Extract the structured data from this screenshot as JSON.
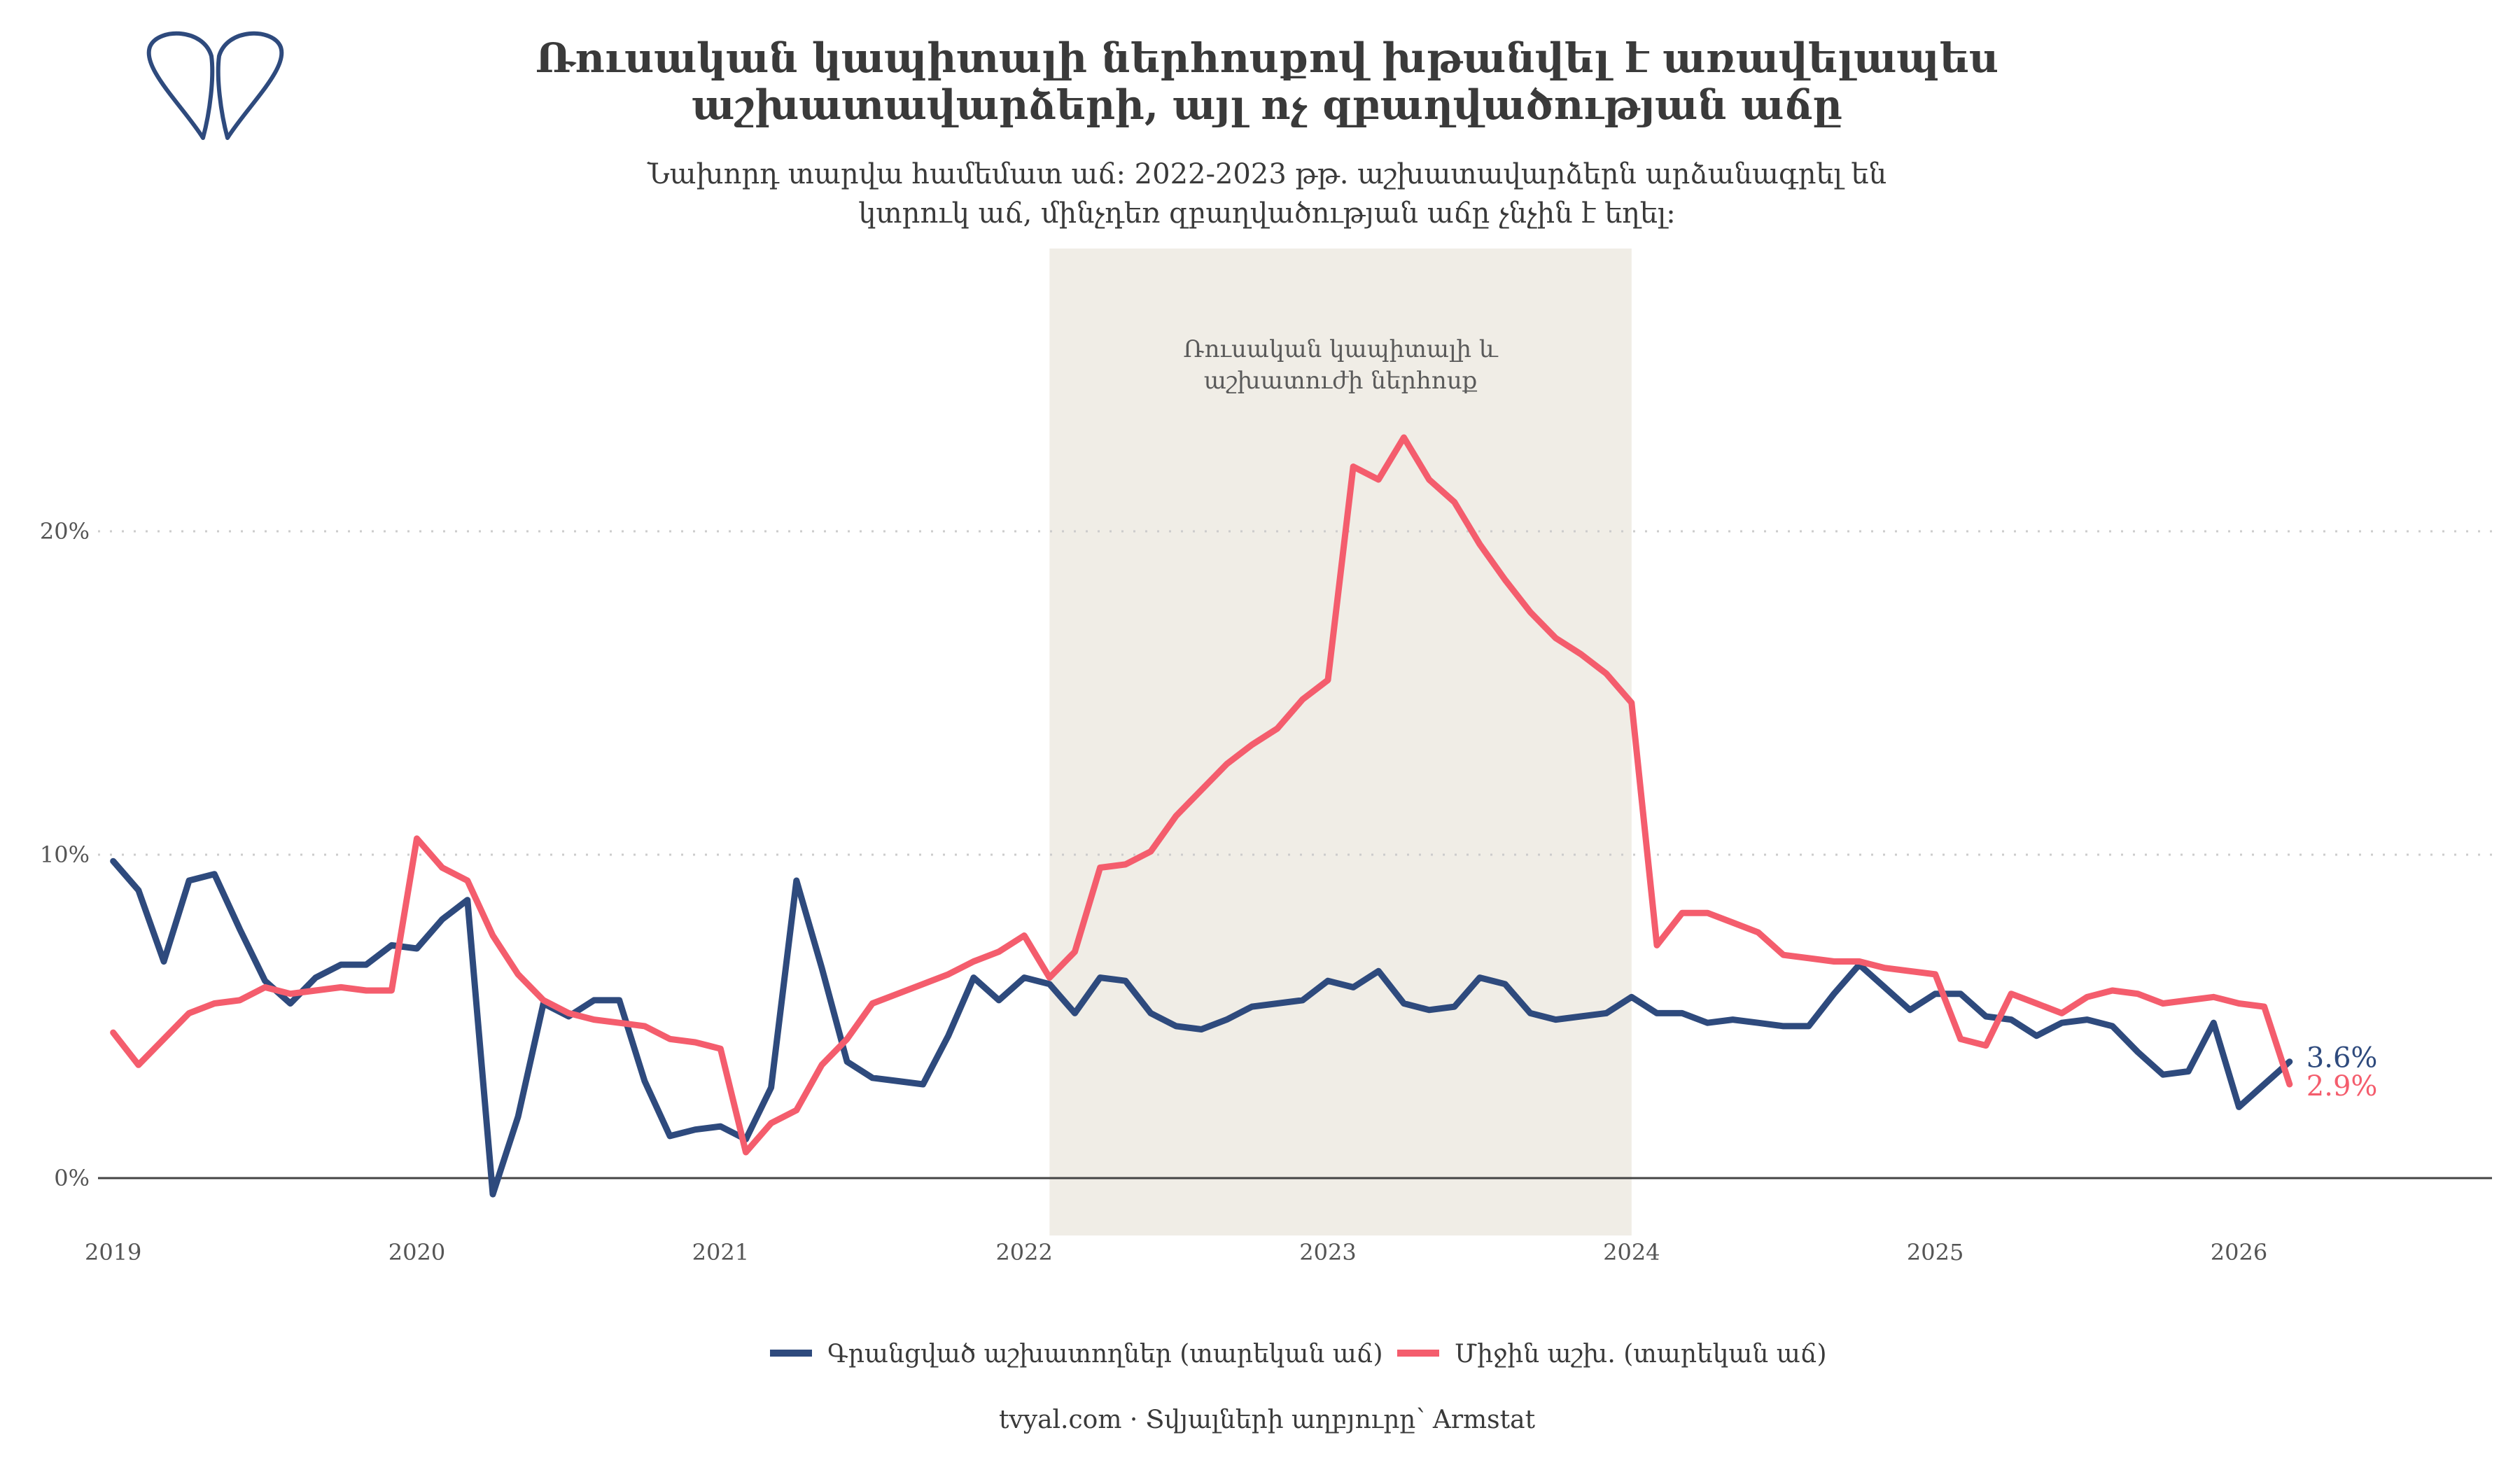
{
  "title": [
    "Ռուսական կապիտալի ներհոսքով խթանվել է առավելապես",
    "աշխատավարձերի, այլ ոչ զբաղվածության աճը"
  ],
  "subtitle": [
    "Նախորդ տարվա համեմատ աճ: 2022-2023 թթ. աշխատավարձերն արձանագրել են",
    "կտրուկ աճ, մինչդեռ զբաղվածության աճը չնչին է եղել:"
  ],
  "caption": "tvyal.com  ·  Տվյալների աղբյուրը՝ Armstat",
  "logo_icon": "tvyal-logo-icon",
  "colors": {
    "employees": "#2e4a7d",
    "wage": "#f45d6d",
    "shade": "#f0ede6",
    "grid": "#cccccc",
    "zero_line": "#444444"
  },
  "chart_data": {
    "type": "line",
    "ylim": [
      -0.02,
      0.28
    ],
    "xlim": [
      "2019-01",
      "2026-11"
    ],
    "grid": "horizontal dotted",
    "legend_position": "bottom",
    "y_ticks": [
      {
        "value": 0.0,
        "label": "0%"
      },
      {
        "value": 0.1,
        "label": "10%"
      },
      {
        "value": 0.2,
        "label": "20%"
      }
    ],
    "x_ticks": [
      {
        "value": 2019,
        "label": "2019"
      },
      {
        "value": 2020,
        "label": "2020"
      },
      {
        "value": 2021,
        "label": "2021"
      },
      {
        "value": 2022,
        "label": "2022"
      },
      {
        "value": 2023,
        "label": "2023"
      },
      {
        "value": 2024,
        "label": "2024"
      },
      {
        "value": 2025,
        "label": "2025"
      },
      {
        "value": 2026,
        "label": "2026"
      }
    ],
    "shaded_period": {
      "start": "2022-02",
      "end": "2024-01",
      "label": [
        "Ռուսական կապիտալի և",
        "աշխատուժի ներհոսք"
      ]
    },
    "series": [
      {
        "name": "Գրանցված աշխատողներ (տարեկան աճ)",
        "color": "#2e4a7d",
        "end_label": "3.6%",
        "points": [
          [
            "2019-01",
            0.098
          ],
          [
            "2019-02",
            0.089
          ],
          [
            "2019-03",
            0.067
          ],
          [
            "2019-04",
            0.092
          ],
          [
            "2019-05",
            0.094
          ],
          [
            "2019-06",
            0.077
          ],
          [
            "2019-07",
            0.061
          ],
          [
            "2019-08",
            0.054
          ],
          [
            "2019-09",
            0.062
          ],
          [
            "2019-10",
            0.066
          ],
          [
            "2019-11",
            0.066
          ],
          [
            "2019-12",
            0.072
          ],
          [
            "2020-01",
            0.071
          ],
          [
            "2020-02",
            0.08
          ],
          [
            "2020-03",
            0.086
          ],
          [
            "2020-04",
            -0.005
          ],
          [
            "2020-05",
            0.019
          ],
          [
            "2020-06",
            0.054
          ],
          [
            "2020-07",
            0.05
          ],
          [
            "2020-08",
            0.055
          ],
          [
            "2020-09",
            0.055
          ],
          [
            "2020-10",
            0.03
          ],
          [
            "2020-11",
            0.013
          ],
          [
            "2020-12",
            0.015
          ],
          [
            "2021-01",
            0.016
          ],
          [
            "2021-02",
            0.012
          ],
          [
            "2021-03",
            0.028
          ],
          [
            "2021-04",
            0.092
          ],
          [
            "2021-05",
            0.065
          ],
          [
            "2021-06",
            0.036
          ],
          [
            "2021-07",
            0.031
          ],
          [
            "2021-08",
            0.03
          ],
          [
            "2021-09",
            0.029
          ],
          [
            "2021-10",
            0.044
          ],
          [
            "2021-11",
            0.062
          ],
          [
            "2021-12",
            0.055
          ],
          [
            "2022-01",
            0.062
          ],
          [
            "2022-02",
            0.06
          ],
          [
            "2022-03",
            0.051
          ],
          [
            "2022-04",
            0.062
          ],
          [
            "2022-05",
            0.061
          ],
          [
            "2022-06",
            0.051
          ],
          [
            "2022-07",
            0.047
          ],
          [
            "2022-08",
            0.046
          ],
          [
            "2022-09",
            0.049
          ],
          [
            "2022-10",
            0.053
          ],
          [
            "2022-11",
            0.054
          ],
          [
            "2022-12",
            0.055
          ],
          [
            "2023-01",
            0.061
          ],
          [
            "2023-02",
            0.059
          ],
          [
            "2023-03",
            0.064
          ],
          [
            "2023-04",
            0.054
          ],
          [
            "2023-05",
            0.052
          ],
          [
            "2023-06",
            0.053
          ],
          [
            "2023-07",
            0.062
          ],
          [
            "2023-08",
            0.06
          ],
          [
            "2023-09",
            0.051
          ],
          [
            "2023-10",
            0.049
          ],
          [
            "2023-11",
            0.05
          ],
          [
            "2023-12",
            0.051
          ],
          [
            "2024-01",
            0.056
          ],
          [
            "2024-02",
            0.051
          ],
          [
            "2024-03",
            0.051
          ],
          [
            "2024-04",
            0.048
          ],
          [
            "2024-05",
            0.049
          ],
          [
            "2024-06",
            0.048
          ],
          [
            "2024-07",
            0.047
          ],
          [
            "2024-08",
            0.047
          ],
          [
            "2024-09",
            0.057
          ],
          [
            "2024-10",
            0.066
          ],
          [
            "2024-11",
            0.059
          ],
          [
            "2024-12",
            0.052
          ],
          [
            "2025-01",
            0.057
          ],
          [
            "2025-02",
            0.057
          ],
          [
            "2025-03",
            0.05
          ],
          [
            "2025-04",
            0.049
          ],
          [
            "2025-05",
            0.044
          ],
          [
            "2025-06",
            0.048
          ],
          [
            "2025-07",
            0.049
          ],
          [
            "2025-08",
            0.047
          ],
          [
            "2025-09",
            0.039
          ],
          [
            "2025-10",
            0.032
          ],
          [
            "2025-11",
            0.033
          ],
          [
            "2025-12",
            0.048
          ],
          [
            "2026-01",
            0.022
          ],
          [
            "2026-02",
            0.029
          ],
          [
            "2026-03",
            0.036
          ]
        ]
      },
      {
        "name": "Միջին աշխ. (տարեկան աճ)",
        "color": "#f45d6d",
        "end_label": "2.9%",
        "points": [
          [
            "2019-01",
            0.045
          ],
          [
            "2019-02",
            0.035
          ],
          [
            "2019-03",
            0.043
          ],
          [
            "2019-04",
            0.051
          ],
          [
            "2019-05",
            0.054
          ],
          [
            "2019-06",
            0.055
          ],
          [
            "2019-07",
            0.059
          ],
          [
            "2019-08",
            0.057
          ],
          [
            "2019-09",
            0.058
          ],
          [
            "2019-10",
            0.059
          ],
          [
            "2019-11",
            0.058
          ],
          [
            "2019-12",
            0.058
          ],
          [
            "2020-01",
            0.105
          ],
          [
            "2020-02",
            0.096
          ],
          [
            "2020-03",
            0.092
          ],
          [
            "2020-04",
            0.075
          ],
          [
            "2020-05",
            0.063
          ],
          [
            "2020-06",
            0.055
          ],
          [
            "2020-07",
            0.051
          ],
          [
            "2020-08",
            0.049
          ],
          [
            "2020-09",
            0.048
          ],
          [
            "2020-10",
            0.047
          ],
          [
            "2020-11",
            0.043
          ],
          [
            "2020-12",
            0.042
          ],
          [
            "2021-01",
            0.04
          ],
          [
            "2021-02",
            0.008
          ],
          [
            "2021-03",
            0.017
          ],
          [
            "2021-04",
            0.021
          ],
          [
            "2021-05",
            0.035
          ],
          [
            "2021-06",
            0.043
          ],
          [
            "2021-07",
            0.054
          ],
          [
            "2021-08",
            0.057
          ],
          [
            "2021-09",
            0.06
          ],
          [
            "2021-10",
            0.063
          ],
          [
            "2021-11",
            0.067
          ],
          [
            "2021-12",
            0.07
          ],
          [
            "2022-01",
            0.075
          ],
          [
            "2022-02",
            0.062
          ],
          [
            "2022-03",
            0.07
          ],
          [
            "2022-04",
            0.096
          ],
          [
            "2022-05",
            0.097
          ],
          [
            "2022-06",
            0.101
          ],
          [
            "2022-07",
            0.112
          ],
          [
            "2022-08",
            0.12
          ],
          [
            "2022-09",
            0.128
          ],
          [
            "2022-10",
            0.134
          ],
          [
            "2022-11",
            0.139
          ],
          [
            "2022-12",
            0.148
          ],
          [
            "2023-01",
            0.154
          ],
          [
            "2023-02",
            0.22
          ],
          [
            "2023-03",
            0.216
          ],
          [
            "2023-04",
            0.229
          ],
          [
            "2023-05",
            0.216
          ],
          [
            "2023-06",
            0.209
          ],
          [
            "2023-07",
            0.196
          ],
          [
            "2023-08",
            0.185
          ],
          [
            "2023-09",
            0.175
          ],
          [
            "2023-10",
            0.167
          ],
          [
            "2023-11",
            0.162
          ],
          [
            "2023-12",
            0.156
          ],
          [
            "2024-01",
            0.147
          ],
          [
            "2024-02",
            0.072
          ],
          [
            "2024-03",
            0.082
          ],
          [
            "2024-04",
            0.082
          ],
          [
            "2024-05",
            0.079
          ],
          [
            "2024-06",
            0.076
          ],
          [
            "2024-07",
            0.069
          ],
          [
            "2024-08",
            0.068
          ],
          [
            "2024-09",
            0.067
          ],
          [
            "2024-10",
            0.067
          ],
          [
            "2024-11",
            0.065
          ],
          [
            "2024-12",
            0.064
          ],
          [
            "2025-01",
            0.063
          ],
          [
            "2025-02",
            0.043
          ],
          [
            "2025-03",
            0.041
          ],
          [
            "2025-04",
            0.057
          ],
          [
            "2025-05",
            0.054
          ],
          [
            "2025-06",
            0.051
          ],
          [
            "2025-07",
            0.056
          ],
          [
            "2025-08",
            0.058
          ],
          [
            "2025-09",
            0.057
          ],
          [
            "2025-10",
            0.054
          ],
          [
            "2025-11",
            0.055
          ],
          [
            "2025-12",
            0.056
          ],
          [
            "2026-01",
            0.054
          ],
          [
            "2026-02",
            0.053
          ],
          [
            "2026-03",
            0.029
          ]
        ]
      }
    ]
  }
}
